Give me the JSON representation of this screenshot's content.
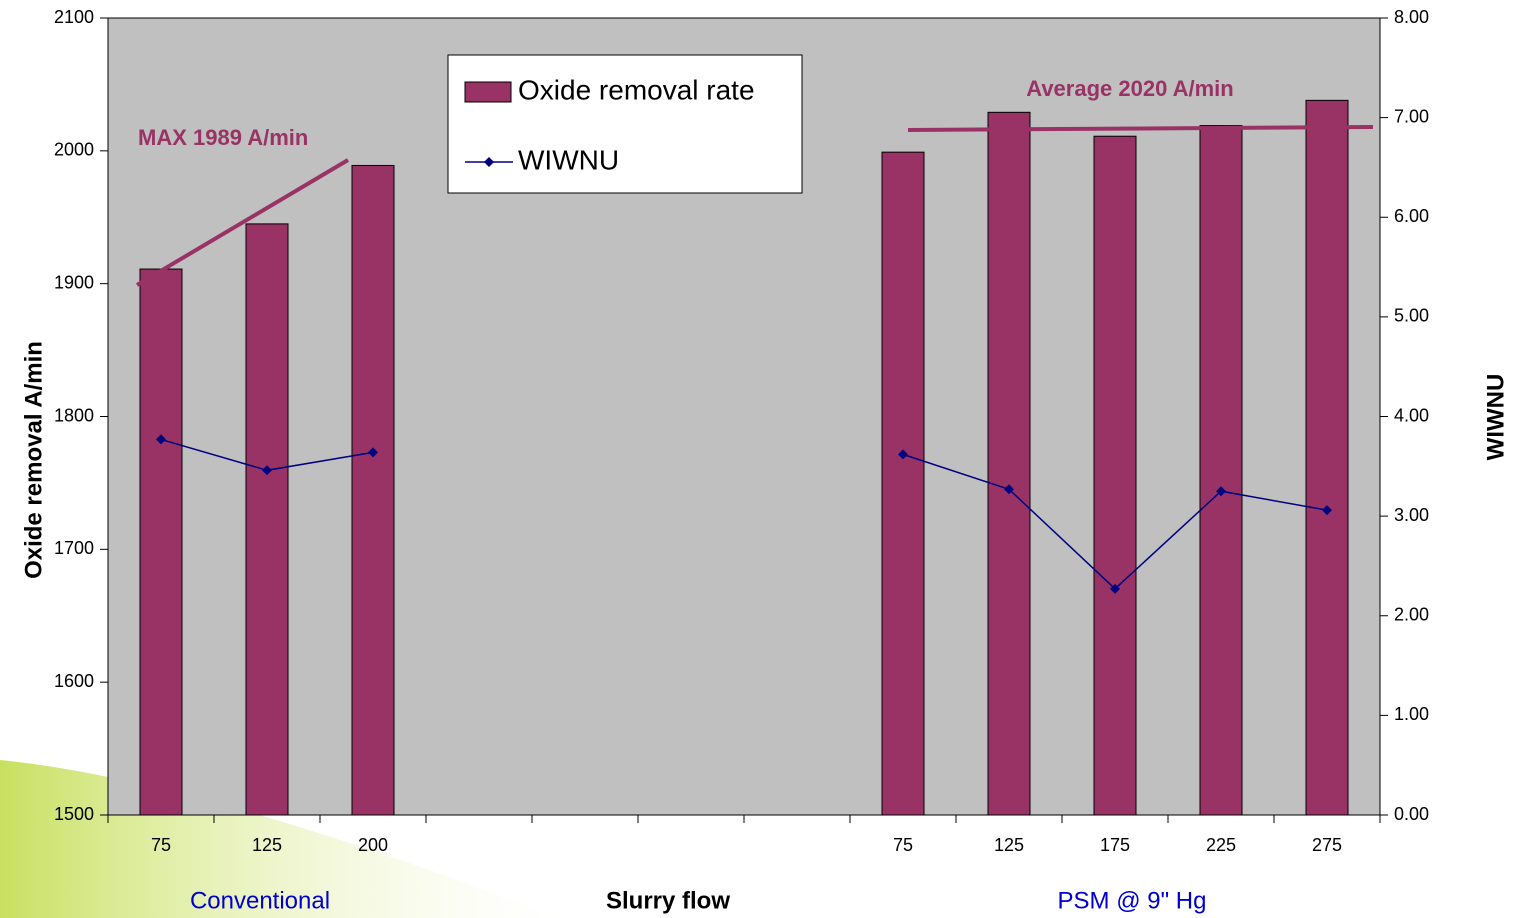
{
  "chart_data": {
    "type": "bar_line",
    "categories": [
      "75",
      "125",
      "200",
      null,
      null,
      null,
      null,
      "75",
      "125",
      "175",
      "225",
      "275"
    ],
    "series": [
      {
        "name": "Oxide removal rate",
        "color": "#993366",
        "type": "bar",
        "values": [
          1911,
          1945,
          1989,
          null,
          null,
          null,
          null,
          1999,
          2029,
          2011,
          2019,
          2038
        ]
      },
      {
        "name": "WIWNU",
        "color": "#000080",
        "type": "line",
        "axis": "y2",
        "values": [
          3.77,
          3.46,
          3.64,
          null,
          null,
          null,
          null,
          3.62,
          3.27,
          2.27,
          3.25,
          3.06
        ]
      }
    ],
    "ylim": [
      1500,
      2100
    ],
    "yticks": [
      1500,
      1600,
      1700,
      1800,
      1900,
      2000,
      2100
    ],
    "y2lim": [
      0,
      8
    ],
    "y2ticks": [
      {
        "value": 0,
        "label": "0.00"
      },
      {
        "value": 1,
        "label": "1.00"
      },
      {
        "value": 2,
        "label": "2.00"
      },
      {
        "value": 3,
        "label": "3.00"
      },
      {
        "value": 4,
        "label": "4.00"
      },
      {
        "value": 5,
        "label": "5.00"
      },
      {
        "value": 6,
        "label": "6.00"
      },
      {
        "value": 7,
        "label": "7.00"
      },
      {
        "value": 8,
        "label": "8.00"
      }
    ],
    "ylabel": "Oxide removal A/min",
    "y2label": "WIWNU",
    "xlabel": "Slurry flow",
    "group_labels": [
      "Conventional",
      "PSM @ 9\" Hg"
    ],
    "annotations": [
      "MAX 1989 A/min",
      "Average 2020 A/min"
    ],
    "plot_background": "#c0c0c0",
    "grid": false
  }
}
